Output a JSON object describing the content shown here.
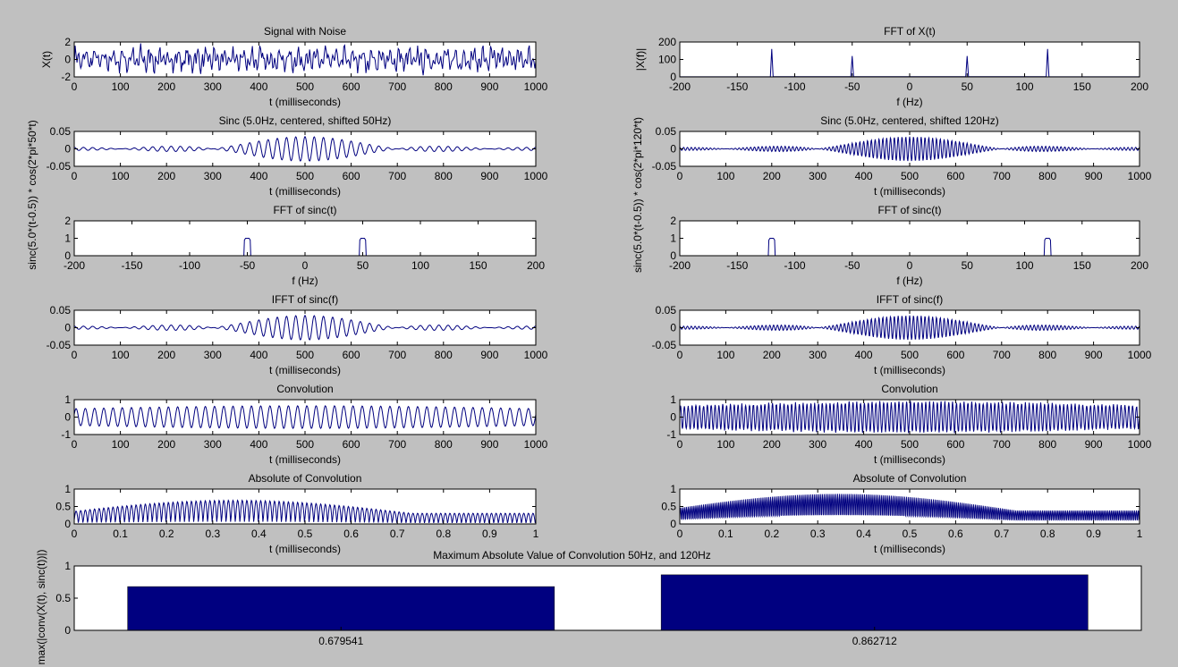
{
  "figure": {
    "background": "#c0c0c0",
    "axes_background": "#ffffff",
    "line_color": "#00007f",
    "bar_color": "#000080"
  },
  "chart_data": [
    {
      "type": "line",
      "panel": "p1",
      "title": "Signal with Noise",
      "xlabel": "t (milliseconds)",
      "ylabel": "X(t)",
      "xlim": [
        0,
        1000
      ],
      "ylim": [
        -2,
        2
      ],
      "xticks": [
        0,
        100,
        200,
        300,
        400,
        500,
        600,
        700,
        800,
        900,
        1000
      ],
      "xtick_labels": [
        "0",
        "100",
        "200",
        "300",
        "400",
        "500",
        "600",
        "700",
        "800",
        "900",
        "1000"
      ],
      "yticks": [
        -2,
        0,
        2
      ],
      "ytick_labels": [
        "-2",
        "0",
        "2"
      ],
      "signal": {
        "kind": "noise",
        "f1": 50,
        "f2": 120,
        "amp": 0.9,
        "n": 500
      }
    },
    {
      "type": "line",
      "panel": "p2",
      "title": "FFT of X(t)",
      "xlabel": "f (Hz)",
      "ylabel": "|X(f)|",
      "xlim": [
        -200,
        200
      ],
      "ylim": [
        0,
        200
      ],
      "xticks": [
        -200,
        -150,
        -100,
        -50,
        0,
        50,
        100,
        150,
        200
      ],
      "xtick_labels": [
        "-200",
        "-150",
        "-100",
        "-50",
        "0",
        "50",
        "100",
        "150",
        "200"
      ],
      "yticks": [
        0,
        100,
        200
      ],
      "ytick_labels": [
        "0",
        "100",
        "200"
      ],
      "signal": {
        "kind": "spikes",
        "peaks": [
          [
            -120,
            160
          ],
          [
            -50,
            120
          ],
          [
            50,
            120
          ],
          [
            120,
            160
          ]
        ]
      }
    },
    {
      "type": "line",
      "panel": "p3",
      "title": "Sinc (5.0Hz, centered, shifted 50Hz)",
      "xlabel": "t (milliseconds)",
      "ylabel": "sinc(5.0*(t-0.5)) * cos(2*pi*50*t)",
      "xlim": [
        0,
        1000
      ],
      "ylim": [
        -0.05,
        0.05
      ],
      "xticks": [
        0,
        100,
        200,
        300,
        400,
        500,
        600,
        700,
        800,
        900,
        1000
      ],
      "xtick_labels": [
        "0",
        "100",
        "200",
        "300",
        "400",
        "500",
        "600",
        "700",
        "800",
        "900",
        "1000"
      ],
      "yticks": [
        -0.05,
        0,
        0.05
      ],
      "ytick_labels": [
        "-0.05",
        "0",
        "0.05"
      ],
      "signal": {
        "kind": "sinc",
        "freq": 50,
        "bw": 5,
        "amp": 0.035,
        "n": 1000
      }
    },
    {
      "type": "line",
      "panel": "p4",
      "title": "Sinc (5.0Hz, centered, shifted 120Hz)",
      "xlabel": "t (milliseconds)",
      "ylabel": "sinc(5.0*(t-0.5)) * cos(2*pi*120*t)",
      "xlim": [
        0,
        1000
      ],
      "ylim": [
        -0.05,
        0.05
      ],
      "xticks": [
        0,
        100,
        200,
        300,
        400,
        500,
        600,
        700,
        800,
        900,
        1000
      ],
      "xtick_labels": [
        "0",
        "100",
        "200",
        "300",
        "400",
        "500",
        "600",
        "700",
        "800",
        "900",
        "1000"
      ],
      "yticks": [
        -0.05,
        0,
        0.05
      ],
      "ytick_labels": [
        "-0.05",
        "0",
        "0.05"
      ],
      "signal": {
        "kind": "sinc",
        "freq": 120,
        "bw": 5,
        "amp": 0.035,
        "n": 1000
      }
    },
    {
      "type": "line",
      "panel": "p5",
      "title": "FFT of sinc(t)",
      "xlabel": "f (Hz)",
      "ylabel": "",
      "xlim": [
        -200,
        200
      ],
      "ylim": [
        0,
        2
      ],
      "xticks": [
        -200,
        -150,
        -100,
        -50,
        0,
        50,
        100,
        150,
        200
      ],
      "xtick_labels": [
        "-200",
        "-150",
        "-100",
        "-50",
        "0",
        "50",
        "100",
        "150",
        "200"
      ],
      "yticks": [
        0,
        1,
        2
      ],
      "ytick_labels": [
        "0",
        "1",
        "2"
      ],
      "signal": {
        "kind": "rects",
        "centers": [
          -50,
          50
        ],
        "halfwidth": 2.5,
        "height": 1
      }
    },
    {
      "type": "line",
      "panel": "p6",
      "title": "FFT of sinc(t)",
      "xlabel": "f (Hz)",
      "ylabel": "",
      "xlim": [
        -200,
        200
      ],
      "ylim": [
        0,
        2
      ],
      "xticks": [
        -200,
        -150,
        -100,
        -50,
        0,
        50,
        100,
        150,
        200
      ],
      "xtick_labels": [
        "-200",
        "-150",
        "-100",
        "-50",
        "0",
        "50",
        "100",
        "150",
        "200"
      ],
      "yticks": [
        0,
        1,
        2
      ],
      "ytick_labels": [
        "0",
        "1",
        "2"
      ],
      "signal": {
        "kind": "rects",
        "centers": [
          -120,
          120
        ],
        "halfwidth": 2.5,
        "height": 1
      }
    },
    {
      "type": "line",
      "panel": "p7",
      "title": "IFFT of sinc(f)",
      "xlabel": "t (milliseconds)",
      "ylabel": "",
      "xlim": [
        0,
        1000
      ],
      "ylim": [
        -0.05,
        0.05
      ],
      "xticks": [
        0,
        100,
        200,
        300,
        400,
        500,
        600,
        700,
        800,
        900,
        1000
      ],
      "xtick_labels": [
        "0",
        "100",
        "200",
        "300",
        "400",
        "500",
        "600",
        "700",
        "800",
        "900",
        "1000"
      ],
      "yticks": [
        -0.05,
        0,
        0.05
      ],
      "ytick_labels": [
        "-0.05",
        "0",
        "0.05"
      ],
      "signal": {
        "kind": "sinc",
        "freq": 50,
        "bw": 5,
        "amp": 0.035,
        "n": 1000
      }
    },
    {
      "type": "line",
      "panel": "p8",
      "title": "IFFT of sinc(f)",
      "xlabel": "t (milliseconds)",
      "ylabel": "",
      "xlim": [
        0,
        1000
      ],
      "ylim": [
        -0.05,
        0.05
      ],
      "xticks": [
        0,
        100,
        200,
        300,
        400,
        500,
        600,
        700,
        800,
        900,
        1000
      ],
      "xtick_labels": [
        "0",
        "100",
        "200",
        "300",
        "400",
        "500",
        "600",
        "700",
        "800",
        "900",
        "1000"
      ],
      "yticks": [
        -0.05,
        0,
        0.05
      ],
      "ytick_labels": [
        "-0.05",
        "0",
        "0.05"
      ],
      "signal": {
        "kind": "sinc",
        "freq": 120,
        "bw": 5,
        "amp": 0.035,
        "n": 1000
      }
    },
    {
      "type": "line",
      "panel": "p9",
      "title": "Convolution",
      "xlabel": "t (milliseconds)",
      "ylabel": "",
      "xlim": [
        0,
        1000
      ],
      "ylim": [
        -1,
        1
      ],
      "xticks": [
        0,
        100,
        200,
        300,
        400,
        500,
        600,
        700,
        800,
        900,
        1000
      ],
      "xtick_labels": [
        "0",
        "100",
        "200",
        "300",
        "400",
        "500",
        "600",
        "700",
        "800",
        "900",
        "1000"
      ],
      "yticks": [
        -1,
        0,
        1
      ],
      "ytick_labels": [
        "-1",
        "0",
        "1"
      ],
      "signal": {
        "kind": "conv",
        "freq": 50,
        "amp": 0.65,
        "n": 800
      }
    },
    {
      "type": "line",
      "panel": "p10",
      "title": "Convolution",
      "xlabel": "t (milliseconds)",
      "ylabel": "",
      "xlim": [
        0,
        1000
      ],
      "ylim": [
        -1,
        1
      ],
      "xticks": [
        0,
        100,
        200,
        300,
        400,
        500,
        600,
        700,
        800,
        900,
        1000
      ],
      "xtick_labels": [
        "0",
        "100",
        "200",
        "300",
        "400",
        "500",
        "600",
        "700",
        "800",
        "900",
        "1000"
      ],
      "yticks": [
        -1,
        0,
        1
      ],
      "ytick_labels": [
        "-1",
        "0",
        "1"
      ],
      "signal": {
        "kind": "conv",
        "freq": 120,
        "amp": 0.85,
        "n": 1200
      }
    },
    {
      "type": "line",
      "panel": "p11",
      "title": "Absolute of Convolution",
      "xlabel": "t (milliseconds)",
      "ylabel": "",
      "xlim": [
        0,
        1
      ],
      "ylim": [
        0,
        1
      ],
      "xticks": [
        0,
        0.1,
        0.2,
        0.3,
        0.4,
        0.5,
        0.6,
        0.7,
        0.8,
        0.9,
        1
      ],
      "xtick_labels": [
        "0",
        "0.1",
        "0.2",
        "0.3",
        "0.4",
        "0.5",
        "0.6",
        "0.7",
        "0.8",
        "0.9",
        "1"
      ],
      "yticks": [
        0,
        0.5,
        1
      ],
      "ytick_labels": [
        "0",
        "0.5",
        "1"
      ],
      "signal": {
        "kind": "absconv",
        "freq": 50,
        "amp": 0.68,
        "n": 800
      }
    },
    {
      "type": "line",
      "panel": "p12",
      "title": "Absolute of Convolution",
      "xlabel": "t (milliseconds)",
      "ylabel": "",
      "xlim": [
        0,
        1
      ],
      "ylim": [
        0,
        1
      ],
      "xticks": [
        0,
        0.1,
        0.2,
        0.3,
        0.4,
        0.5,
        0.6,
        0.7,
        0.8,
        0.9,
        1
      ],
      "xtick_labels": [
        "0",
        "0.1",
        "0.2",
        "0.3",
        "0.4",
        "0.5",
        "0.6",
        "0.7",
        "0.8",
        "0.9",
        "1"
      ],
      "yticks": [
        0,
        0.5,
        1
      ],
      "ytick_labels": [
        "0",
        "0.5",
        "1"
      ],
      "signal": {
        "kind": "absconv",
        "freq": 120,
        "amp": 0.86,
        "n": 1200
      }
    },
    {
      "type": "bar",
      "panel": "p13",
      "title": "Maximum Absolute Value of Convolution 50Hz, and 120Hz",
      "xlabel": "",
      "ylabel": "max(|conv(X(t), sinc(t))|)",
      "categories": [
        "0.679541",
        "0.862712"
      ],
      "values": [
        0.679541,
        0.862712
      ],
      "ylim": [
        0,
        1
      ],
      "yticks": [
        0,
        0.5,
        1
      ],
      "ytick_labels": [
        "0",
        "0.5",
        "1"
      ]
    }
  ]
}
